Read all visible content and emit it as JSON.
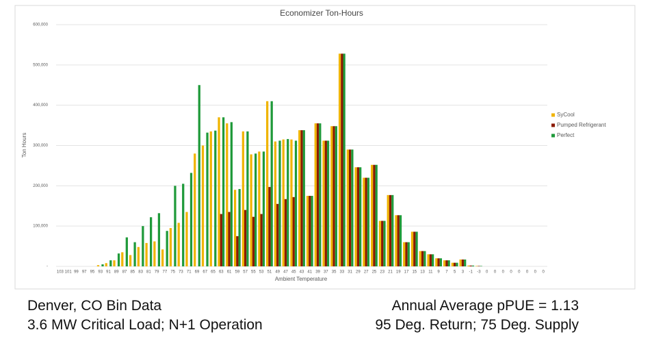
{
  "chart_data": {
    "type": "bar",
    "title": "Economizer Ton-Hours",
    "y_label": "Ton Hours",
    "x_label": "Ambient Temperature",
    "categories": [
      "103",
      "101",
      "99",
      "97",
      "95",
      "93",
      "91",
      "89",
      "87",
      "85",
      "83",
      "81",
      "79",
      "77",
      "75",
      "73",
      "71",
      "69",
      "67",
      "65",
      "63",
      "61",
      "59",
      "57",
      "55",
      "53",
      "51",
      "49",
      "47",
      "45",
      "43",
      "41",
      "39",
      "37",
      "35",
      "33",
      "31",
      "29",
      "27",
      "25",
      "23",
      "21",
      "19",
      "17",
      "15",
      "13",
      "11",
      "9",
      "7",
      "5",
      "3",
      "-1",
      "-3",
      "0",
      "0",
      "0",
      "0",
      "0",
      "0",
      "0",
      "0"
    ],
    "series": [
      {
        "name": "SyCool",
        "color": "#f0b400",
        "values": [
          0,
          0,
          0,
          0,
          0,
          3000,
          8000,
          15000,
          35000,
          28000,
          48000,
          58000,
          62000,
          42000,
          95000,
          108000,
          135000,
          280000,
          300000,
          335000,
          370000,
          355000,
          190000,
          335000,
          278000,
          285000,
          410000,
          310000,
          315000,
          315000,
          338000,
          175000,
          355000,
          312000,
          348000,
          528000,
          290000,
          246000,
          220000,
          252000,
          113000,
          177000,
          127000,
          60000,
          86000,
          38000,
          30000,
          20000,
          15000,
          9000,
          17000,
          2000,
          1000,
          0,
          0,
          0,
          0,
          0,
          0,
          0,
          0
        ]
      },
      {
        "name": "Pumped Refrigerant",
        "color": "#8b1a00",
        "values": [
          0,
          0,
          0,
          0,
          0,
          0,
          0,
          0,
          0,
          0,
          0,
          0,
          0,
          0,
          0,
          0,
          0,
          0,
          0,
          0,
          130000,
          135000,
          75000,
          140000,
          123000,
          130000,
          197000,
          155000,
          167000,
          172000,
          338000,
          175000,
          355000,
          312000,
          348000,
          528000,
          290000,
          246000,
          220000,
          252000,
          113000,
          177000,
          127000,
          60000,
          86000,
          38000,
          30000,
          20000,
          15000,
          9000,
          17000,
          2000,
          1000,
          0,
          0,
          0,
          0,
          0,
          0,
          0,
          0
        ]
      },
      {
        "name": "Perfect",
        "color": "#1f9a3a",
        "values": [
          0,
          0,
          0,
          0,
          0,
          5000,
          15000,
          32000,
          72000,
          60000,
          100000,
          122000,
          132000,
          88000,
          200000,
          205000,
          232000,
          450000,
          332000,
          337000,
          370000,
          358000,
          192000,
          335000,
          280000,
          285000,
          410000,
          312000,
          316000,
          312000,
          338000,
          175000,
          355000,
          312000,
          348000,
          528000,
          290000,
          246000,
          220000,
          252000,
          113000,
          177000,
          127000,
          60000,
          86000,
          38000,
          30000,
          20000,
          15000,
          9000,
          17000,
          2000,
          1000,
          0,
          0,
          0,
          0,
          0,
          0,
          0,
          0
        ]
      }
    ],
    "ylim": [
      0,
      600000
    ],
    "yticks": [
      {
        "value": 0,
        "label": "-"
      },
      {
        "value": 100000,
        "label": "100,000"
      },
      {
        "value": 200000,
        "label": "200,000"
      },
      {
        "value": 300000,
        "label": "300,000"
      },
      {
        "value": 400000,
        "label": "400,000"
      },
      {
        "value": 500000,
        "label": "500,000"
      },
      {
        "value": 600000,
        "label": "600,000"
      }
    ],
    "grid": true,
    "legend": "right"
  },
  "footer": {
    "left": [
      "Denver, CO Bin Data",
      "3.6 MW Critical Load; N+1 Operation"
    ],
    "right": [
      "Annual Average pPUE = 1.13",
      "95 Deg. Return; 75 Deg. Supply"
    ]
  }
}
